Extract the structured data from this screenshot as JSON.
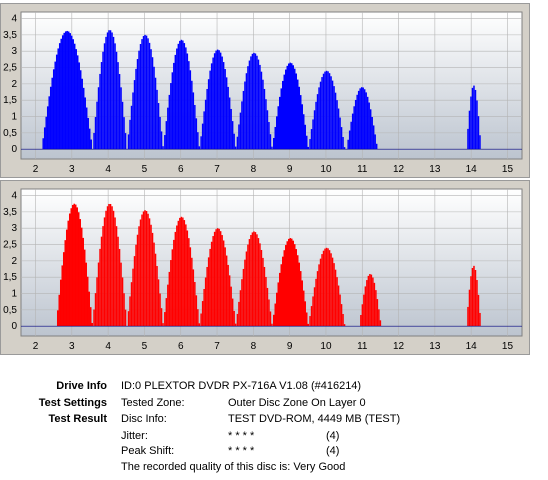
{
  "chart_data": [
    {
      "type": "bar",
      "color": "#0000ff",
      "xlim": [
        1.6,
        15.4
      ],
      "ylim": [
        -0.3,
        4.2
      ],
      "x_ticks": [
        2,
        3,
        4,
        5,
        6,
        7,
        8,
        9,
        10,
        11,
        12,
        13,
        14,
        15
      ],
      "y_ticks": [
        0,
        0.5,
        1,
        1.5,
        2,
        2.5,
        3,
        3.5,
        4
      ],
      "y_tick_labels": [
        "0",
        "0,5",
        "1",
        "1,5",
        "2",
        "2,5",
        "3",
        "3,5",
        "4"
      ],
      "humps": [
        {
          "start": 2.15,
          "end": 3.55,
          "peak": 3.62
        },
        {
          "start": 3.55,
          "end": 4.5,
          "peak": 3.65
        },
        {
          "start": 4.5,
          "end": 5.5,
          "peak": 3.5
        },
        {
          "start": 5.5,
          "end": 6.5,
          "peak": 3.35
        },
        {
          "start": 6.5,
          "end": 7.5,
          "peak": 3.05
        },
        {
          "start": 7.5,
          "end": 8.5,
          "peak": 2.95
        },
        {
          "start": 8.5,
          "end": 9.5,
          "peak": 2.65
        },
        {
          "start": 9.5,
          "end": 10.5,
          "peak": 2.4
        },
        {
          "start": 10.55,
          "end": 11.4,
          "peak": 1.9
        },
        {
          "start": 13.85,
          "end": 14.25,
          "peak": 1.95
        }
      ]
    },
    {
      "type": "bar",
      "color": "#ff0000",
      "xlim": [
        1.6,
        15.4
      ],
      "ylim": [
        -0.3,
        4.2
      ],
      "x_ticks": [
        2,
        3,
        4,
        5,
        6,
        7,
        8,
        9,
        10,
        11,
        12,
        13,
        14,
        15
      ],
      "y_ticks": [
        0,
        0.5,
        1,
        1.5,
        2,
        2.5,
        3,
        3.5,
        4
      ],
      "y_tick_labels": [
        "0",
        "0,5",
        "1",
        "1,5",
        "2",
        "2,5",
        "3",
        "3,5",
        "4"
      ],
      "humps": [
        {
          "start": 2.55,
          "end": 3.55,
          "peak": 3.75
        },
        {
          "start": 3.55,
          "end": 4.5,
          "peak": 3.75
        },
        {
          "start": 4.5,
          "end": 5.5,
          "peak": 3.55
        },
        {
          "start": 5.5,
          "end": 6.5,
          "peak": 3.35
        },
        {
          "start": 6.5,
          "end": 7.5,
          "peak": 3.0
        },
        {
          "start": 7.5,
          "end": 8.5,
          "peak": 2.9
        },
        {
          "start": 8.5,
          "end": 9.5,
          "peak": 2.7
        },
        {
          "start": 9.5,
          "end": 10.5,
          "peak": 2.4
        },
        {
          "start": 10.9,
          "end": 11.5,
          "peak": 1.6
        },
        {
          "start": 13.85,
          "end": 14.25,
          "peak": 1.85
        }
      ]
    }
  ],
  "info": {
    "drive_info_label": "Drive Info",
    "drive_info_value": "ID:0 PLEXTOR DVDR PX-716A V1.08 (#416214)",
    "test_settings_label": "Test Settings",
    "tested_zone_label": "Tested Zone:",
    "tested_zone_value": "Outer Disc Zone On Layer 0",
    "test_result_label": "Test Result",
    "disc_info_label": "Disc Info:",
    "disc_info_value": "TEST DVD-ROM, 4449 MB (TEST)",
    "jitter_label": "Jitter:",
    "jitter_stars": "* * * *",
    "jitter_score": "(4)",
    "peak_shift_label": "Peak Shift:",
    "peak_shift_stars": "* * * *",
    "peak_shift_score": "(4)",
    "quality_text": "The recorded quality of this disc is: Very Good"
  }
}
